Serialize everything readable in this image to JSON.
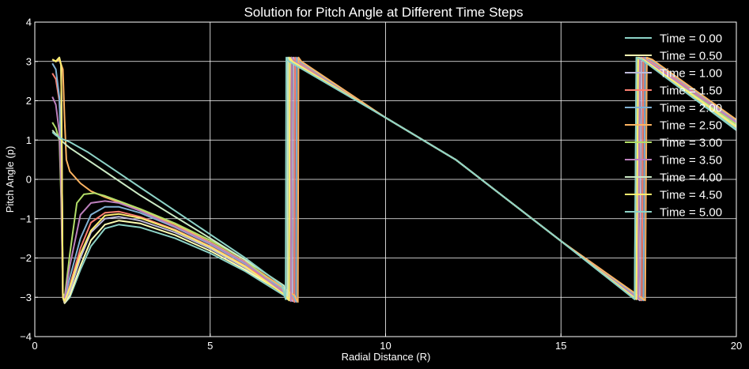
{
  "chart_data": {
    "type": "line",
    "title": "Solution for Pitch Angle at Different Time Steps",
    "xlabel": "Radial Distance (R)",
    "ylabel": "Pitch Angle (p)",
    "xlim": [
      0,
      20
    ],
    "ylim": [
      -4,
      4
    ],
    "xticks": [
      0,
      5,
      10,
      15,
      20
    ],
    "yticks": [
      -4,
      -3,
      -2,
      -1,
      0,
      1,
      2,
      3,
      4
    ],
    "grid": true,
    "legend_position": "top-right",
    "background": "#000000",
    "series": [
      {
        "name": "Time = 0.00",
        "color": "#8dd3c7",
        "points": [
          [
            0.5,
            3.05
          ],
          [
            0.6,
            3.0
          ],
          [
            0.7,
            3.1
          ],
          [
            0.75,
            2.9
          ],
          [
            0.8,
            -3.0
          ],
          [
            0.85,
            -3.15
          ],
          [
            1.0,
            -3.0
          ],
          [
            1.3,
            -2.3
          ],
          [
            1.6,
            -1.7
          ],
          [
            2.0,
            -1.25
          ],
          [
            2.4,
            -1.15
          ],
          [
            3.0,
            -1.22
          ],
          [
            4.0,
            -1.5
          ],
          [
            5.0,
            -1.88
          ],
          [
            6.0,
            -2.34
          ],
          [
            7.1,
            -2.95
          ],
          [
            7.2,
            -3.05
          ],
          [
            7.22,
            3.1
          ],
          [
            7.3,
            3.0
          ],
          [
            10.0,
            1.57
          ],
          [
            12.0,
            0.5
          ],
          [
            15.0,
            -1.57
          ],
          [
            17.1,
            -3.05
          ],
          [
            17.15,
            3.1
          ],
          [
            17.3,
            3.05
          ],
          [
            20.0,
            1.3
          ]
        ]
      },
      {
        "name": "Time = 0.50",
        "color": "#ffffb3",
        "points": [
          [
            0.5,
            3.05
          ],
          [
            0.6,
            3.0
          ],
          [
            0.7,
            3.1
          ],
          [
            0.75,
            2.9
          ],
          [
            0.8,
            -3.0
          ],
          [
            0.85,
            -3.15
          ],
          [
            1.0,
            -2.95
          ],
          [
            1.3,
            -2.2
          ],
          [
            1.6,
            -1.55
          ],
          [
            2.0,
            -1.15
          ],
          [
            2.4,
            -1.05
          ],
          [
            3.0,
            -1.12
          ],
          [
            4.0,
            -1.42
          ],
          [
            5.0,
            -1.82
          ],
          [
            6.0,
            -2.3
          ],
          [
            7.2,
            -2.95
          ],
          [
            7.3,
            -3.08
          ],
          [
            7.32,
            3.1
          ],
          [
            7.4,
            3.0
          ],
          [
            10.0,
            1.57
          ],
          [
            12.0,
            0.5
          ],
          [
            15.0,
            -1.57
          ],
          [
            17.2,
            -3.05
          ],
          [
            17.25,
            3.1
          ],
          [
            17.4,
            3.05
          ],
          [
            20.0,
            1.38
          ]
        ]
      },
      {
        "name": "Time = 1.00",
        "color": "#bebada",
        "points": [
          [
            0.5,
            3.05
          ],
          [
            0.6,
            3.0
          ],
          [
            0.7,
            3.1
          ],
          [
            0.75,
            2.9
          ],
          [
            0.8,
            -3.0
          ],
          [
            0.85,
            -3.12
          ],
          [
            1.0,
            -2.85
          ],
          [
            1.3,
            -2.0
          ],
          [
            1.6,
            -1.35
          ],
          [
            2.0,
            -1.0
          ],
          [
            2.4,
            -0.95
          ],
          [
            3.0,
            -1.05
          ],
          [
            4.0,
            -1.35
          ],
          [
            5.0,
            -1.76
          ],
          [
            6.0,
            -2.25
          ],
          [
            7.25,
            -2.95
          ],
          [
            7.35,
            -3.1
          ],
          [
            7.37,
            3.1
          ],
          [
            7.45,
            3.0
          ],
          [
            10.0,
            1.57
          ],
          [
            12.0,
            0.5
          ],
          [
            15.0,
            -1.57
          ],
          [
            17.25,
            -3.08
          ],
          [
            17.3,
            3.1
          ],
          [
            17.45,
            3.05
          ],
          [
            20.0,
            1.42
          ]
        ]
      },
      {
        "name": "Time = 1.50",
        "color": "#fb8072",
        "points": [
          [
            0.5,
            2.7
          ],
          [
            0.6,
            2.55
          ],
          [
            0.7,
            2.0
          ],
          [
            0.75,
            0.9
          ],
          [
            0.8,
            -3.0
          ],
          [
            0.85,
            -3.1
          ],
          [
            1.0,
            -2.7
          ],
          [
            1.3,
            -1.75
          ],
          [
            1.6,
            -1.1
          ],
          [
            2.0,
            -0.85
          ],
          [
            2.4,
            -0.82
          ],
          [
            3.0,
            -0.95
          ],
          [
            4.0,
            -1.28
          ],
          [
            5.0,
            -1.7
          ],
          [
            6.0,
            -2.2
          ],
          [
            7.3,
            -2.95
          ],
          [
            7.4,
            -3.12
          ],
          [
            7.42,
            3.1
          ],
          [
            7.5,
            3.0
          ],
          [
            10.0,
            1.57
          ],
          [
            12.0,
            0.5
          ],
          [
            15.0,
            -1.57
          ],
          [
            17.3,
            -3.08
          ],
          [
            17.35,
            3.1
          ],
          [
            17.5,
            3.05
          ],
          [
            20.0,
            1.47
          ]
        ]
      },
      {
        "name": "Time = 2.00",
        "color": "#80b1d3",
        "points": [
          [
            0.5,
            2.95
          ],
          [
            0.6,
            2.8
          ],
          [
            0.7,
            2.1
          ],
          [
            0.75,
            0.6
          ],
          [
            0.8,
            -2.9
          ],
          [
            0.85,
            -3.05
          ],
          [
            1.0,
            -2.5
          ],
          [
            1.3,
            -1.5
          ],
          [
            1.6,
            -0.9
          ],
          [
            2.0,
            -0.7
          ],
          [
            2.4,
            -0.7
          ],
          [
            3.0,
            -0.85
          ],
          [
            4.0,
            -1.22
          ],
          [
            5.0,
            -1.65
          ],
          [
            6.0,
            -2.15
          ],
          [
            7.35,
            -2.95
          ],
          [
            7.45,
            -3.12
          ],
          [
            7.47,
            3.1
          ],
          [
            7.55,
            3.0
          ],
          [
            10.0,
            1.57
          ],
          [
            12.0,
            0.5
          ],
          [
            15.0,
            -1.57
          ],
          [
            17.35,
            -3.08
          ],
          [
            17.4,
            3.1
          ],
          [
            17.55,
            3.05
          ],
          [
            20.0,
            1.5
          ]
        ]
      },
      {
        "name": "Time = 2.50",
        "color": "#fdb462",
        "points": [
          [
            0.5,
            3.05
          ],
          [
            0.6,
            3.0
          ],
          [
            0.7,
            3.05
          ],
          [
            0.8,
            2.8
          ],
          [
            0.85,
            1.5
          ],
          [
            0.9,
            0.5
          ],
          [
            1.0,
            0.2
          ],
          [
            1.3,
            -0.1
          ],
          [
            1.6,
            -0.3
          ],
          [
            2.0,
            -0.45
          ],
          [
            3.0,
            -0.78
          ],
          [
            4.0,
            -1.15
          ],
          [
            5.0,
            -1.6
          ],
          [
            6.0,
            -2.1
          ],
          [
            7.4,
            -2.95
          ],
          [
            7.5,
            -3.12
          ],
          [
            7.52,
            3.1
          ],
          [
            7.6,
            3.0
          ],
          [
            10.0,
            1.57
          ],
          [
            12.0,
            0.5
          ],
          [
            15.0,
            -1.57
          ],
          [
            17.4,
            -3.08
          ],
          [
            17.45,
            3.1
          ],
          [
            17.6,
            3.05
          ],
          [
            20.0,
            1.52
          ]
        ]
      },
      {
        "name": "Time = 3.00",
        "color": "#b3de69",
        "points": [
          [
            0.5,
            1.45
          ],
          [
            0.6,
            1.3
          ],
          [
            0.7,
            1.0
          ],
          [
            0.75,
            -0.5
          ],
          [
            0.8,
            -2.9
          ],
          [
            0.85,
            -3.0
          ],
          [
            1.0,
            -1.9
          ],
          [
            1.2,
            -0.6
          ],
          [
            1.4,
            -0.38
          ],
          [
            1.7,
            -0.35
          ],
          [
            2.0,
            -0.42
          ],
          [
            3.0,
            -0.75
          ],
          [
            4.0,
            -1.12
          ],
          [
            5.0,
            -1.55
          ],
          [
            6.0,
            -2.05
          ],
          [
            7.15,
            -2.95
          ],
          [
            7.25,
            -3.08
          ],
          [
            7.27,
            3.1
          ],
          [
            7.35,
            3.0
          ],
          [
            10.0,
            1.57
          ],
          [
            12.0,
            0.5
          ],
          [
            15.0,
            -1.57
          ],
          [
            17.15,
            -3.05
          ],
          [
            17.2,
            3.1
          ],
          [
            17.35,
            3.05
          ],
          [
            20.0,
            1.4
          ]
        ]
      },
      {
        "name": "Time = 3.50",
        "color": "#bc80bd",
        "points": [
          [
            0.5,
            2.1
          ],
          [
            0.6,
            1.9
          ],
          [
            0.7,
            1.2
          ],
          [
            0.75,
            -0.2
          ],
          [
            0.8,
            -2.95
          ],
          [
            0.85,
            -3.05
          ],
          [
            1.0,
            -2.2
          ],
          [
            1.3,
            -0.9
          ],
          [
            1.6,
            -0.6
          ],
          [
            2.0,
            -0.55
          ],
          [
            2.4,
            -0.6
          ],
          [
            3.0,
            -0.8
          ],
          [
            4.0,
            -1.2
          ],
          [
            5.0,
            -1.62
          ],
          [
            6.0,
            -2.12
          ],
          [
            7.2,
            -2.95
          ],
          [
            7.3,
            -3.1
          ],
          [
            7.32,
            3.1
          ],
          [
            7.4,
            3.0
          ],
          [
            10.0,
            1.57
          ],
          [
            12.0,
            0.5
          ],
          [
            15.0,
            -1.57
          ],
          [
            17.2,
            -3.05
          ],
          [
            17.25,
            3.1
          ],
          [
            17.4,
            3.05
          ],
          [
            20.0,
            1.45
          ]
        ]
      },
      {
        "name": "Time = 4.00",
        "color": "#ccebc5",
        "points": [
          [
            0.5,
            1.25
          ],
          [
            0.6,
            1.15
          ],
          [
            0.7,
            1.05
          ],
          [
            0.8,
            0.95
          ],
          [
            1.0,
            0.8
          ],
          [
            1.5,
            0.5
          ],
          [
            2.0,
            0.2
          ],
          [
            3.0,
            -0.4
          ],
          [
            4.0,
            -0.95
          ],
          [
            5.0,
            -1.5
          ],
          [
            6.0,
            -2.05
          ],
          [
            7.1,
            -2.7
          ],
          [
            7.2,
            -3.05
          ],
          [
            7.22,
            3.1
          ],
          [
            7.3,
            3.0
          ],
          [
            10.0,
            1.57
          ],
          [
            12.0,
            0.5
          ],
          [
            15.0,
            -1.57
          ],
          [
            17.15,
            -3.05
          ],
          [
            17.2,
            3.1
          ],
          [
            17.35,
            3.05
          ],
          [
            20.0,
            1.35
          ]
        ]
      },
      {
        "name": "Time = 4.50",
        "color": "#ffed6f",
        "points": [
          [
            0.5,
            3.05
          ],
          [
            0.6,
            3.0
          ],
          [
            0.7,
            3.1
          ],
          [
            0.75,
            2.9
          ],
          [
            0.8,
            -3.0
          ],
          [
            0.85,
            -3.1
          ],
          [
            1.0,
            -2.75
          ],
          [
            1.3,
            -1.9
          ],
          [
            1.6,
            -1.3
          ],
          [
            2.0,
            -0.92
          ],
          [
            2.4,
            -0.88
          ],
          [
            3.0,
            -0.98
          ],
          [
            4.0,
            -1.3
          ],
          [
            5.0,
            -1.72
          ],
          [
            6.0,
            -2.22
          ],
          [
            7.15,
            -2.95
          ],
          [
            7.25,
            -3.08
          ],
          [
            7.27,
            3.1
          ],
          [
            7.35,
            3.0
          ],
          [
            10.0,
            1.57
          ],
          [
            12.0,
            0.5
          ],
          [
            15.0,
            -1.57
          ],
          [
            17.15,
            -3.05
          ],
          [
            17.2,
            3.1
          ],
          [
            17.35,
            3.05
          ],
          [
            20.0,
            1.33
          ]
        ]
      },
      {
        "name": "Time = 5.00",
        "color": "#8dd3c7",
        "points": [
          [
            0.5,
            1.2
          ],
          [
            0.6,
            1.12
          ],
          [
            0.8,
            1.02
          ],
          [
            1.0,
            0.95
          ],
          [
            1.5,
            0.7
          ],
          [
            2.0,
            0.4
          ],
          [
            3.0,
            -0.2
          ],
          [
            4.0,
            -0.8
          ],
          [
            5.0,
            -1.4
          ],
          [
            6.0,
            -2.0
          ],
          [
            7.05,
            -2.7
          ],
          [
            7.15,
            -3.05
          ],
          [
            7.17,
            3.1
          ],
          [
            7.25,
            3.0
          ],
          [
            10.0,
            1.57
          ],
          [
            12.0,
            0.5
          ],
          [
            15.0,
            -1.57
          ],
          [
            17.1,
            -3.05
          ],
          [
            17.15,
            3.1
          ],
          [
            17.3,
            3.05
          ],
          [
            20.0,
            1.25
          ]
        ]
      }
    ]
  }
}
